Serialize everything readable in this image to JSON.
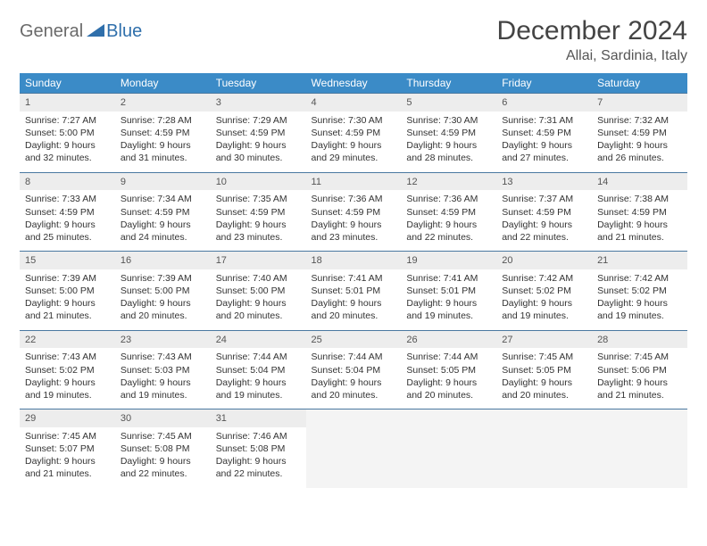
{
  "logo": {
    "text1": "General",
    "text2": "Blue"
  },
  "title": "December 2024",
  "location": "Allai, Sardinia, Italy",
  "colors": {
    "header_bg": "#3b8bc7",
    "header_text": "#ffffff",
    "daynum_bg": "#ededed",
    "row_border": "#4a78a0",
    "logo_gray": "#6a6a6a",
    "logo_blue": "#2f6fab"
  },
  "weekdays": [
    "Sunday",
    "Monday",
    "Tuesday",
    "Wednesday",
    "Thursday",
    "Friday",
    "Saturday"
  ],
  "weeks": [
    [
      {
        "n": "1",
        "sr": "Sunrise: 7:27 AM",
        "ss": "Sunset: 5:00 PM",
        "d1": "Daylight: 9 hours",
        "d2": "and 32 minutes."
      },
      {
        "n": "2",
        "sr": "Sunrise: 7:28 AM",
        "ss": "Sunset: 4:59 PM",
        "d1": "Daylight: 9 hours",
        "d2": "and 31 minutes."
      },
      {
        "n": "3",
        "sr": "Sunrise: 7:29 AM",
        "ss": "Sunset: 4:59 PM",
        "d1": "Daylight: 9 hours",
        "d2": "and 30 minutes."
      },
      {
        "n": "4",
        "sr": "Sunrise: 7:30 AM",
        "ss": "Sunset: 4:59 PM",
        "d1": "Daylight: 9 hours",
        "d2": "and 29 minutes."
      },
      {
        "n": "5",
        "sr": "Sunrise: 7:30 AM",
        "ss": "Sunset: 4:59 PM",
        "d1": "Daylight: 9 hours",
        "d2": "and 28 minutes."
      },
      {
        "n": "6",
        "sr": "Sunrise: 7:31 AM",
        "ss": "Sunset: 4:59 PM",
        "d1": "Daylight: 9 hours",
        "d2": "and 27 minutes."
      },
      {
        "n": "7",
        "sr": "Sunrise: 7:32 AM",
        "ss": "Sunset: 4:59 PM",
        "d1": "Daylight: 9 hours",
        "d2": "and 26 minutes."
      }
    ],
    [
      {
        "n": "8",
        "sr": "Sunrise: 7:33 AM",
        "ss": "Sunset: 4:59 PM",
        "d1": "Daylight: 9 hours",
        "d2": "and 25 minutes."
      },
      {
        "n": "9",
        "sr": "Sunrise: 7:34 AM",
        "ss": "Sunset: 4:59 PM",
        "d1": "Daylight: 9 hours",
        "d2": "and 24 minutes."
      },
      {
        "n": "10",
        "sr": "Sunrise: 7:35 AM",
        "ss": "Sunset: 4:59 PM",
        "d1": "Daylight: 9 hours",
        "d2": "and 23 minutes."
      },
      {
        "n": "11",
        "sr": "Sunrise: 7:36 AM",
        "ss": "Sunset: 4:59 PM",
        "d1": "Daylight: 9 hours",
        "d2": "and 23 minutes."
      },
      {
        "n": "12",
        "sr": "Sunrise: 7:36 AM",
        "ss": "Sunset: 4:59 PM",
        "d1": "Daylight: 9 hours",
        "d2": "and 22 minutes."
      },
      {
        "n": "13",
        "sr": "Sunrise: 7:37 AM",
        "ss": "Sunset: 4:59 PM",
        "d1": "Daylight: 9 hours",
        "d2": "and 22 minutes."
      },
      {
        "n": "14",
        "sr": "Sunrise: 7:38 AM",
        "ss": "Sunset: 4:59 PM",
        "d1": "Daylight: 9 hours",
        "d2": "and 21 minutes."
      }
    ],
    [
      {
        "n": "15",
        "sr": "Sunrise: 7:39 AM",
        "ss": "Sunset: 5:00 PM",
        "d1": "Daylight: 9 hours",
        "d2": "and 21 minutes."
      },
      {
        "n": "16",
        "sr": "Sunrise: 7:39 AM",
        "ss": "Sunset: 5:00 PM",
        "d1": "Daylight: 9 hours",
        "d2": "and 20 minutes."
      },
      {
        "n": "17",
        "sr": "Sunrise: 7:40 AM",
        "ss": "Sunset: 5:00 PM",
        "d1": "Daylight: 9 hours",
        "d2": "and 20 minutes."
      },
      {
        "n": "18",
        "sr": "Sunrise: 7:41 AM",
        "ss": "Sunset: 5:01 PM",
        "d1": "Daylight: 9 hours",
        "d2": "and 20 minutes."
      },
      {
        "n": "19",
        "sr": "Sunrise: 7:41 AM",
        "ss": "Sunset: 5:01 PM",
        "d1": "Daylight: 9 hours",
        "d2": "and 19 minutes."
      },
      {
        "n": "20",
        "sr": "Sunrise: 7:42 AM",
        "ss": "Sunset: 5:02 PM",
        "d1": "Daylight: 9 hours",
        "d2": "and 19 minutes."
      },
      {
        "n": "21",
        "sr": "Sunrise: 7:42 AM",
        "ss": "Sunset: 5:02 PM",
        "d1": "Daylight: 9 hours",
        "d2": "and 19 minutes."
      }
    ],
    [
      {
        "n": "22",
        "sr": "Sunrise: 7:43 AM",
        "ss": "Sunset: 5:02 PM",
        "d1": "Daylight: 9 hours",
        "d2": "and 19 minutes."
      },
      {
        "n": "23",
        "sr": "Sunrise: 7:43 AM",
        "ss": "Sunset: 5:03 PM",
        "d1": "Daylight: 9 hours",
        "d2": "and 19 minutes."
      },
      {
        "n": "24",
        "sr": "Sunrise: 7:44 AM",
        "ss": "Sunset: 5:04 PM",
        "d1": "Daylight: 9 hours",
        "d2": "and 19 minutes."
      },
      {
        "n": "25",
        "sr": "Sunrise: 7:44 AM",
        "ss": "Sunset: 5:04 PM",
        "d1": "Daylight: 9 hours",
        "d2": "and 20 minutes."
      },
      {
        "n": "26",
        "sr": "Sunrise: 7:44 AM",
        "ss": "Sunset: 5:05 PM",
        "d1": "Daylight: 9 hours",
        "d2": "and 20 minutes."
      },
      {
        "n": "27",
        "sr": "Sunrise: 7:45 AM",
        "ss": "Sunset: 5:05 PM",
        "d1": "Daylight: 9 hours",
        "d2": "and 20 minutes."
      },
      {
        "n": "28",
        "sr": "Sunrise: 7:45 AM",
        "ss": "Sunset: 5:06 PM",
        "d1": "Daylight: 9 hours",
        "d2": "and 21 minutes."
      }
    ],
    [
      {
        "n": "29",
        "sr": "Sunrise: 7:45 AM",
        "ss": "Sunset: 5:07 PM",
        "d1": "Daylight: 9 hours",
        "d2": "and 21 minutes."
      },
      {
        "n": "30",
        "sr": "Sunrise: 7:45 AM",
        "ss": "Sunset: 5:08 PM",
        "d1": "Daylight: 9 hours",
        "d2": "and 22 minutes."
      },
      {
        "n": "31",
        "sr": "Sunrise: 7:46 AM",
        "ss": "Sunset: 5:08 PM",
        "d1": "Daylight: 9 hours",
        "d2": "and 22 minutes."
      },
      null,
      null,
      null,
      null
    ]
  ]
}
